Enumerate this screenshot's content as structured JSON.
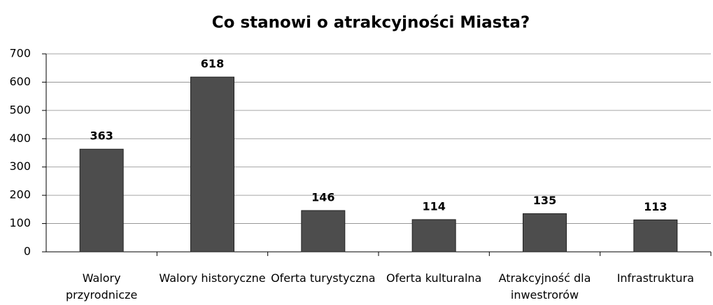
{
  "chart_data": {
    "type": "bar",
    "title": "Co stanowi o atrakcyjności Miasta?",
    "categories": [
      "Walory przyrodnicze",
      "Walory historyczne",
      "Oferta turystyczna",
      "Oferta kulturalna",
      "Atrakcyjność dla inwestrorów",
      "Infrastruktura"
    ],
    "values": [
      363,
      618,
      146,
      114,
      135,
      113
    ],
    "color": "#4d4d4d",
    "ylim": [
      0,
      700
    ],
    "yticks": [
      0,
      100,
      200,
      300,
      400,
      500,
      600,
      700
    ],
    "grid": true
  }
}
